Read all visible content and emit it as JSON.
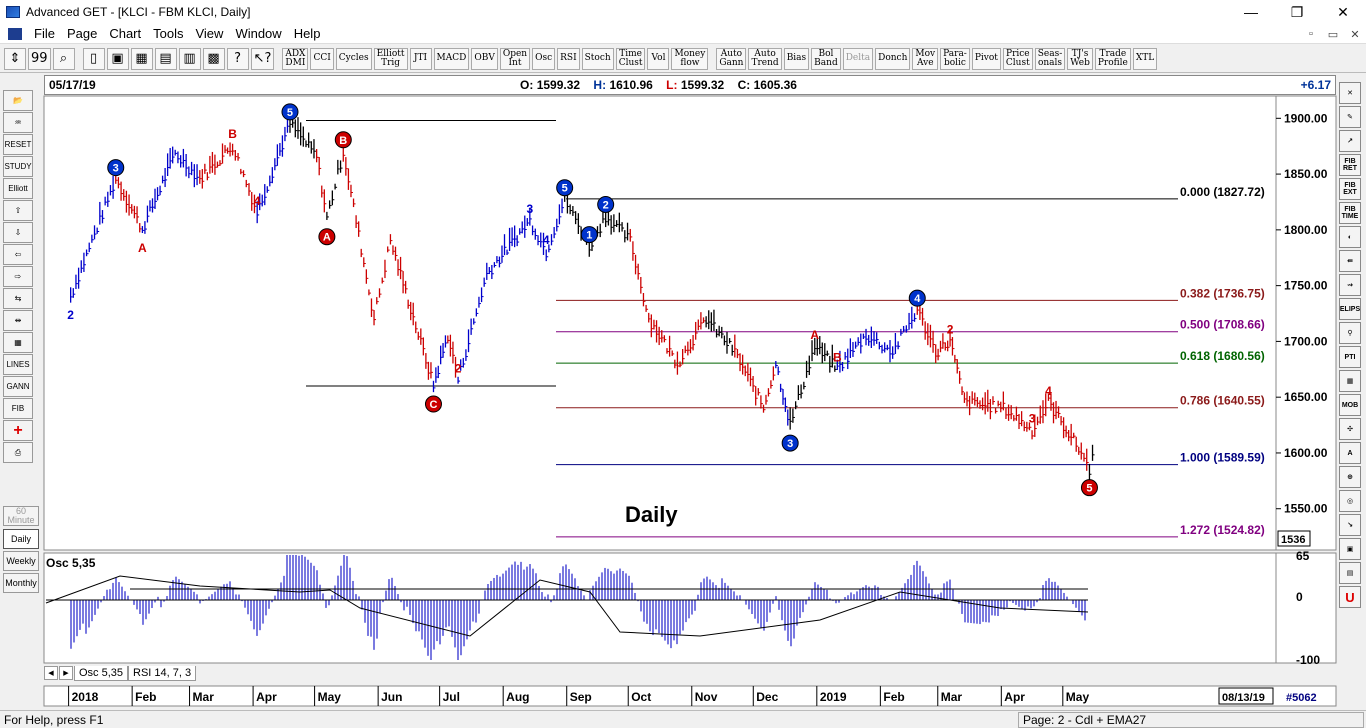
{
  "window": {
    "title": "Advanced GET - [KLCI - FBM KLCI, Daily]",
    "minimize": "—",
    "maximize": "❐",
    "close": "✕"
  },
  "menu": [
    "File",
    "Page",
    "Chart",
    "Tools",
    "View",
    "Window",
    "Help"
  ],
  "mdi_controls": [
    "▫",
    "▭",
    "✕"
  ],
  "toolbar": {
    "icons": [
      "pointer-icon",
      "quote-icon",
      "zoom-icon",
      "new-page-icon",
      "save-icon",
      "print-icon",
      "copy-icon",
      "paste-icon",
      "delete-icon",
      "help-icon",
      "context-help-icon"
    ],
    "icon_glyphs": [
      "⇕",
      "99",
      "⌕",
      "▯",
      "▣",
      "▦",
      "▤",
      "▥",
      "▩",
      "?",
      "↖?"
    ],
    "studies": [
      "ADX\nDMI",
      "CCI",
      "Cycles",
      "Elliott\nTrig",
      "JTI",
      "MACD",
      "OBV",
      "Open\nInt",
      "Osc",
      "RSI",
      "Stoch",
      "Time\nClust",
      "Vol",
      "Money\nflow",
      "Auto\nGann",
      "Auto\nTrend",
      "Bias",
      "Bol\nBand",
      "Delta",
      "Donch",
      "Mov\nAve",
      "Para-\nbolic",
      "Pivot",
      "Price\nClust",
      "Seas-\nonals",
      "TJ's\nWeb",
      "Trade\nProfile",
      "XTL"
    ],
    "dimmed": [
      "Delta"
    ]
  },
  "left_tools": [
    {
      "name": "open-icon",
      "label": "📂"
    },
    {
      "name": "template-icon",
      "label": "♒"
    },
    {
      "name": "reset-button",
      "label": "RESET"
    },
    {
      "name": "study-button",
      "label": "STUDY"
    },
    {
      "name": "elliott-button",
      "label": "Elliott"
    },
    {
      "name": "arrow-up-icon",
      "label": "⇧"
    },
    {
      "name": "arrow-down-icon",
      "label": "⇩"
    },
    {
      "name": "arrow-left-icon",
      "label": "⇦"
    },
    {
      "name": "arrow-right-icon",
      "label": "⇨"
    },
    {
      "name": "compress-icon",
      "label": "⇆"
    },
    {
      "name": "expand-icon",
      "label": "⇹"
    },
    {
      "name": "grid-icon",
      "label": "▦"
    },
    {
      "name": "lines-button",
      "label": "LINES"
    },
    {
      "name": "gann-button",
      "label": "GANN"
    },
    {
      "name": "fib-button",
      "label": "FIB"
    },
    {
      "name": "crosshair-icon",
      "label": "+"
    },
    {
      "name": "print-chart-icon",
      "label": "⎙"
    }
  ],
  "periods": [
    {
      "label": "60\nMinute",
      "state": "dim"
    },
    {
      "label": "Daily",
      "state": "active"
    },
    {
      "label": "Weekly",
      "state": ""
    },
    {
      "label": "Monthly",
      "state": ""
    }
  ],
  "right_tools": [
    "✕",
    "✎",
    "↗",
    "FIB\nRET",
    "FIB\nEXT",
    "FIB\nTIME",
    "◐",
    "⇚",
    "⇝",
    "ELIPS",
    "⚲",
    "PTI",
    "▦",
    "MOB",
    "✣",
    "A",
    "⊕",
    "◎",
    "↘",
    "▣",
    "▤",
    "U"
  ],
  "header": {
    "date": "05/17/19",
    "open_label": "O:",
    "open": "1599.32",
    "high_label": "H:",
    "high": "1610.96",
    "low_label": "L:",
    "low": "1599.32",
    "close_label": "C:",
    "close": "1605.36",
    "change": "+6.17"
  },
  "price_axis": {
    "ticks": [
      "1900.00",
      "1850.00",
      "1800.00",
      "1750.00",
      "1700.00",
      "1650.00",
      "1600.00",
      "1550.00"
    ],
    "current_box": "1536"
  },
  "fib_levels": [
    {
      "label": "0.000 (1827.72)",
      "color": "#000000"
    },
    {
      "label": "0.382 (1736.75)",
      "color": "#8b1a1a"
    },
    {
      "label": "0.500 (1708.66)",
      "color": "#800080"
    },
    {
      "label": "0.618 (1680.56)",
      "color": "#006400"
    },
    {
      "label": "0.786 (1640.55)",
      "color": "#8b1a1a"
    },
    {
      "label": "1.000 (1589.59)",
      "color": "#000080"
    },
    {
      "label": "1.272 (1524.82)",
      "color": "#800080"
    }
  ],
  "chart_label": "Daily",
  "osc": {
    "title": "Osc 5,35",
    "axis": [
      "65",
      "0",
      "-100"
    ]
  },
  "time_axis": {
    "months": [
      "2018",
      "Feb",
      "Mar",
      "Apr",
      "May",
      "Jun",
      "Jul",
      "Aug",
      "Sep",
      "Oct",
      "Nov",
      "Dec",
      "2019",
      "Feb",
      "Mar",
      "Apr",
      "May"
    ],
    "end_date": "08/13/19",
    "bar_count": "#5062"
  },
  "tabs": [
    "Osc 5,35",
    "RSI 14, 7, 3"
  ],
  "status": {
    "help": "For Help, press F1",
    "page": "Page: 2 - Cdl + EMA27"
  },
  "chart_data": {
    "type": "line",
    "title": "KLCI - FBM KLCI, Daily",
    "y_axis_ticks": [
      1550,
      1600,
      1650,
      1700,
      1750,
      1800,
      1850,
      1900
    ],
    "x_axis_ticks": [
      "2018",
      "Feb",
      "Mar",
      "Apr",
      "May",
      "Jun",
      "Jul",
      "Aug",
      "Sep",
      "Oct",
      "Nov",
      "Dec",
      "2019",
      "Feb",
      "Mar",
      "Apr",
      "May"
    ],
    "price_path": [
      {
        "x": "2018-01-02",
        "y": 1740,
        "wave": "2",
        "c": "blue"
      },
      {
        "x": "2018-01-24",
        "y": 1845,
        "wave": "3",
        "c": "blue"
      },
      {
        "x": "2018-02-06",
        "y": 1800,
        "wave": "A",
        "c": "red"
      },
      {
        "x": "2018-02-22",
        "y": 1868,
        "wave": "",
        "c": "blue"
      },
      {
        "x": "2018-03-06",
        "y": 1845,
        "wave": "",
        "c": "blue"
      },
      {
        "x": "2018-03-22",
        "y": 1875,
        "wave": "B",
        "c": "red"
      },
      {
        "x": "2018-04-03",
        "y": 1815,
        "wave": "4",
        "c": "red"
      },
      {
        "x": "2018-04-19",
        "y": 1895,
        "wave": "5",
        "c": "blue"
      },
      {
        "x": "2018-05-02",
        "y": 1865,
        "wave": "",
        "c": "black"
      },
      {
        "x": "2018-05-07",
        "y": 1810,
        "wave": "A",
        "c": "red"
      },
      {
        "x": "2018-05-15",
        "y": 1870,
        "wave": "B",
        "c": "black"
      },
      {
        "x": "2018-05-30",
        "y": 1720,
        "wave": "",
        "c": "red"
      },
      {
        "x": "2018-06-07",
        "y": 1790,
        "wave": "",
        "c": "red"
      },
      {
        "x": "2018-06-28",
        "y": 1660,
        "wave": "C",
        "c": "red"
      },
      {
        "x": "2018-07-05",
        "y": 1705,
        "wave": "",
        "c": "blue"
      },
      {
        "x": "2018-07-10",
        "y": 1665,
        "wave": "2",
        "c": "red"
      },
      {
        "x": "2018-07-24",
        "y": 1760,
        "wave": "",
        "c": "blue"
      },
      {
        "x": "2018-08-14",
        "y": 1808,
        "wave": "3",
        "c": "blue"
      },
      {
        "x": "2018-08-22",
        "y": 1780,
        "wave": "4",
        "c": "blue"
      },
      {
        "x": "2018-08-31",
        "y": 1827,
        "wave": "5",
        "c": "blue"
      },
      {
        "x": "2018-09-12",
        "y": 1785,
        "wave": "1",
        "c": "black"
      },
      {
        "x": "2018-09-20",
        "y": 1812,
        "wave": "2",
        "c": "black"
      },
      {
        "x": "2018-10-02",
        "y": 1790,
        "wave": "",
        "c": "black"
      },
      {
        "x": "2018-10-11",
        "y": 1720,
        "wave": "",
        "c": "red"
      },
      {
        "x": "2018-10-25",
        "y": 1680,
        "wave": "",
        "c": "red"
      },
      {
        "x": "2018-11-08",
        "y": 1720,
        "wave": "",
        "c": "red"
      },
      {
        "x": "2018-11-22",
        "y": 1690,
        "wave": "",
        "c": "black"
      },
      {
        "x": "2018-12-06",
        "y": 1640,
        "wave": "",
        "c": "red"
      },
      {
        "x": "2018-12-12",
        "y": 1680,
        "wave": "",
        "c": "red"
      },
      {
        "x": "2018-12-19",
        "y": 1625,
        "wave": "3",
        "c": "blue"
      },
      {
        "x": "2018-12-31",
        "y": 1695,
        "wave": "A",
        "c": "black"
      },
      {
        "x": "2019-01-11",
        "y": 1675,
        "wave": "B",
        "c": "black"
      },
      {
        "x": "2019-01-25",
        "y": 1705,
        "wave": "",
        "c": "blue"
      },
      {
        "x": "2019-02-07",
        "y": 1690,
        "wave": "",
        "c": "blue"
      },
      {
        "x": "2019-02-19",
        "y": 1728,
        "wave": "4",
        "c": "blue"
      },
      {
        "x": "2019-02-28",
        "y": 1690,
        "wave": "",
        "c": "red"
      },
      {
        "x": "2019-03-07",
        "y": 1700,
        "wave": "2",
        "c": "red"
      },
      {
        "x": "2019-03-14",
        "y": 1645,
        "wave": "",
        "c": "red"
      },
      {
        "x": "2019-04-02",
        "y": 1640,
        "wave": "",
        "c": "red"
      },
      {
        "x": "2019-04-16",
        "y": 1620,
        "wave": "3",
        "c": "red"
      },
      {
        "x": "2019-04-24",
        "y": 1645,
        "wave": "4",
        "c": "red"
      },
      {
        "x": "2019-05-10",
        "y": 1600,
        "wave": "",
        "c": "red"
      },
      {
        "x": "2019-05-14",
        "y": 1585,
        "wave": "5",
        "c": "red"
      },
      {
        "x": "2019-05-17",
        "y": 1605,
        "wave": "",
        "c": "black"
      }
    ],
    "fib_retracement": [
      1827.72,
      1736.75,
      1708.66,
      1680.56,
      1640.55,
      1589.59,
      1524.82
    ],
    "ohlc_last": {
      "open": 1599.32,
      "high": 1610.96,
      "low": 1599.32,
      "close": 1605.36,
      "change": 6.17
    },
    "oscillator": {
      "name": "Osc 5,35",
      "axis": [
        65,
        0,
        -100
      ]
    }
  }
}
